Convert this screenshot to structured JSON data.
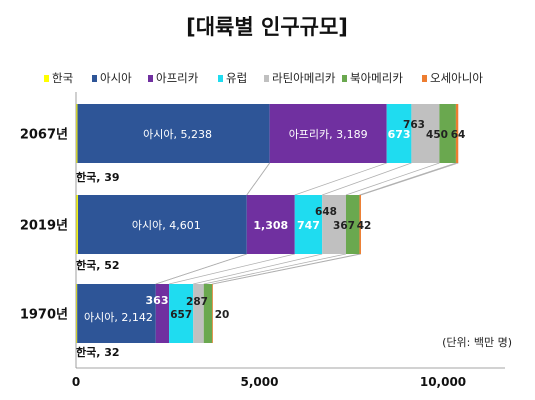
{
  "chart_data": {
    "type": "bar",
    "orientation": "horizontal",
    "stacked": true,
    "title": "[대륙별 인구규모]",
    "unit": "(단위: 백만 명)",
    "categories": [
      "2067년",
      "2019년",
      "1970년"
    ],
    "series": [
      {
        "name": "한국",
        "color": "#ffff00",
        "values": [
          39,
          52,
          32
        ],
        "labels": [
          "한국, 39",
          "한국, 52",
          "한국, 32"
        ]
      },
      {
        "name": "아시아",
        "color": "#2e5597",
        "values": [
          5238,
          4601,
          2142
        ],
        "labels": [
          "아시아, 5,238",
          "아시아, 4,601",
          "아시아, 2,142"
        ]
      },
      {
        "name": "아프리카",
        "color": "#7030a0",
        "values": [
          3189,
          1308,
          363
        ],
        "labels": [
          "아프리카, 3,189",
          "1,308",
          "363"
        ]
      },
      {
        "name": "유럽",
        "color": "#1fdcf0",
        "values": [
          673,
          747,
          657
        ],
        "labels": [
          "673",
          "747",
          "657"
        ]
      },
      {
        "name": "라틴아메리카",
        "color": "#c0c0c0",
        "values": [
          763,
          648,
          287
        ],
        "labels": [
          "763",
          "648",
          "287"
        ]
      },
      {
        "name": "북아메리카",
        "color": "#6aa84f",
        "values": [
          450,
          367,
          231
        ],
        "labels": [
          "450",
          "367",
          ""
        ]
      },
      {
        "name": "오세아니아",
        "color": "#ed7d31",
        "values": [
          64,
          42,
          20
        ],
        "labels": [
          "64",
          "42",
          "20"
        ]
      }
    ],
    "xlim": [
      0,
      12000
    ],
    "xticks": [
      0,
      5000,
      10000
    ],
    "xtick_labels": [
      "0",
      "5,000",
      "10,000"
    ],
    "legend_position": "top"
  }
}
